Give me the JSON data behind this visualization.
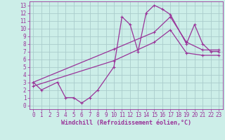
{
  "xlabel": "Windchill (Refroidissement éolien,°C)",
  "background_color": "#cceee8",
  "grid_color": "#aacccc",
  "line_color": "#993399",
  "xlim": [
    -0.5,
    23.5
  ],
  "ylim": [
    -0.5,
    13.5
  ],
  "xticks": [
    0,
    1,
    2,
    3,
    4,
    5,
    6,
    7,
    8,
    9,
    10,
    11,
    12,
    13,
    14,
    15,
    16,
    17,
    18,
    19,
    20,
    21,
    22,
    23
  ],
  "yticks": [
    0,
    1,
    2,
    3,
    4,
    5,
    6,
    7,
    8,
    9,
    10,
    11,
    12,
    13
  ],
  "series1_x": [
    0,
    1,
    3,
    4,
    5,
    6,
    7,
    8,
    10,
    11,
    12,
    13,
    14,
    15,
    16,
    17,
    19,
    20,
    21,
    22,
    23
  ],
  "series1_y": [
    3.0,
    2.0,
    3.0,
    1.0,
    1.0,
    0.3,
    1.0,
    2.0,
    5.0,
    11.5,
    10.5,
    7.0,
    12.0,
    13.0,
    12.5,
    11.8,
    8.0,
    10.5,
    8.0,
    7.0,
    7.0
  ],
  "series2_x": [
    0,
    10,
    15,
    17,
    19,
    21,
    23
  ],
  "series2_y": [
    3.0,
    7.3,
    9.5,
    11.5,
    8.2,
    7.2,
    7.2
  ],
  "series3_x": [
    0,
    10,
    15,
    17,
    19,
    21,
    23
  ],
  "series3_y": [
    2.5,
    5.8,
    8.2,
    9.8,
    6.8,
    6.5,
    6.5
  ],
  "tick_fontsize": 5.5,
  "xlabel_fontsize": 6.0
}
